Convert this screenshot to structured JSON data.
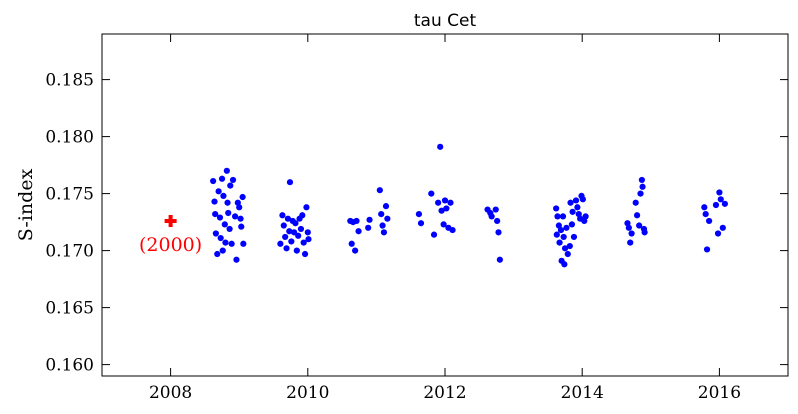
{
  "chart_data": {
    "type": "scatter",
    "title": "tau Cet",
    "xlabel": "",
    "ylabel": "S-index",
    "xlim": [
      2007.0,
      2017.0
    ],
    "ylim": [
      0.159,
      0.189
    ],
    "xticks": [
      2008,
      2010,
      2012,
      2014,
      2016
    ],
    "xtick_labels": [
      "2008",
      "2010",
      "2012",
      "2014",
      "2016"
    ],
    "yticks": [
      0.16,
      0.165,
      0.17,
      0.175,
      0.18,
      0.185
    ],
    "ytick_labels": [
      "0.160",
      "0.165",
      "0.170",
      "0.175",
      "0.180",
      "0.185"
    ],
    "grid": false,
    "colors": {
      "series": "#0000ff",
      "reference": "#ff0000"
    },
    "series": [
      {
        "marker": "circle",
        "points": [
          [
            2008.62,
            0.1761
          ],
          [
            2008.64,
            0.1743
          ],
          [
            2008.65,
            0.1732
          ],
          [
            2008.66,
            0.1715
          ],
          [
            2008.68,
            0.1697
          ],
          [
            2008.7,
            0.1752
          ],
          [
            2008.72,
            0.1729
          ],
          [
            2008.73,
            0.1711
          ],
          [
            2008.75,
            0.1763
          ],
          [
            2008.76,
            0.17
          ],
          [
            2008.77,
            0.1748
          ],
          [
            2008.79,
            0.1723
          ],
          [
            2008.8,
            0.1707
          ],
          [
            2008.82,
            0.177
          ],
          [
            2008.83,
            0.1742
          ],
          [
            2008.84,
            0.1733
          ],
          [
            2008.86,
            0.1719
          ],
          [
            2008.87,
            0.1757
          ],
          [
            2008.89,
            0.1706
          ],
          [
            2008.91,
            0.1762
          ],
          [
            2008.94,
            0.173
          ],
          [
            2008.96,
            0.1692
          ],
          [
            2008.98,
            0.1742
          ],
          [
            2009.0,
            0.1738
          ],
          [
            2009.02,
            0.1728
          ],
          [
            2009.03,
            0.1721
          ],
          [
            2009.05,
            0.1747
          ],
          [
            2009.06,
            0.1706
          ],
          [
            2009.6,
            0.1706
          ],
          [
            2009.63,
            0.1731
          ],
          [
            2009.65,
            0.1722
          ],
          [
            2009.67,
            0.1712
          ],
          [
            2009.69,
            0.1702
          ],
          [
            2009.71,
            0.1728
          ],
          [
            2009.73,
            0.1717
          ],
          [
            2009.74,
            0.176
          ],
          [
            2009.76,
            0.1708
          ],
          [
            2009.78,
            0.1726
          ],
          [
            2009.8,
            0.1716
          ],
          [
            2009.82,
            0.1724
          ],
          [
            2009.84,
            0.17
          ],
          [
            2009.86,
            0.1713
          ],
          [
            2009.88,
            0.1728
          ],
          [
            2009.9,
            0.1719
          ],
          [
            2009.92,
            0.1731
          ],
          [
            2009.94,
            0.1707
          ],
          [
            2009.96,
            0.1697
          ],
          [
            2009.98,
            0.1738
          ],
          [
            2010.0,
            0.1716
          ],
          [
            2010.01,
            0.171
          ],
          [
            2010.62,
            0.1726
          ],
          [
            2010.64,
            0.1706
          ],
          [
            2010.66,
            0.1725
          ],
          [
            2010.69,
            0.17
          ],
          [
            2010.71,
            0.1726
          ],
          [
            2010.74,
            0.1717
          ],
          [
            2010.88,
            0.172
          ],
          [
            2010.9,
            0.1727
          ],
          [
            2011.05,
            0.1753
          ],
          [
            2011.07,
            0.1732
          ],
          [
            2011.09,
            0.1722
          ],
          [
            2011.11,
            0.1716
          ],
          [
            2011.14,
            0.1739
          ],
          [
            2011.16,
            0.1728
          ],
          [
            2011.62,
            0.1732
          ],
          [
            2011.65,
            0.1724
          ],
          [
            2011.8,
            0.175
          ],
          [
            2011.84,
            0.1714
          ],
          [
            2011.9,
            0.1742
          ],
          [
            2011.93,
            0.1791
          ],
          [
            2011.95,
            0.1735
          ],
          [
            2011.98,
            0.1723
          ],
          [
            2012.0,
            0.1744
          ],
          [
            2012.02,
            0.1737
          ],
          [
            2012.05,
            0.172
          ],
          [
            2012.08,
            0.1742
          ],
          [
            2012.11,
            0.1718
          ],
          [
            2012.62,
            0.1736
          ],
          [
            2012.66,
            0.1733
          ],
          [
            2012.68,
            0.173
          ],
          [
            2012.74,
            0.1736
          ],
          [
            2012.76,
            0.1726
          ],
          [
            2012.78,
            0.1716
          ],
          [
            2012.8,
            0.1692
          ],
          [
            2013.62,
            0.1737
          ],
          [
            2013.63,
            0.1714
          ],
          [
            2013.64,
            0.173
          ],
          [
            2013.66,
            0.1722
          ],
          [
            2013.67,
            0.1707
          ],
          [
            2013.69,
            0.1718
          ],
          [
            2013.7,
            0.1691
          ],
          [
            2013.72,
            0.173
          ],
          [
            2013.73,
            0.1712
          ],
          [
            2013.74,
            0.1688
          ],
          [
            2013.75,
            0.1702
          ],
          [
            2013.77,
            0.172
          ],
          [
            2013.79,
            0.1697
          ],
          [
            2013.82,
            0.1704
          ],
          [
            2013.83,
            0.1742
          ],
          [
            2013.85,
            0.1723
          ],
          [
            2013.86,
            0.1734
          ],
          [
            2013.88,
            0.1712
          ],
          [
            2013.91,
            0.1744
          ],
          [
            2013.93,
            0.1738
          ],
          [
            2013.95,
            0.1732
          ],
          [
            2013.97,
            0.1728
          ],
          [
            2013.99,
            0.1748
          ],
          [
            2014.01,
            0.1745
          ],
          [
            2014.03,
            0.1726
          ],
          [
            2014.05,
            0.173
          ],
          [
            2014.66,
            0.1724
          ],
          [
            2014.68,
            0.172
          ],
          [
            2014.7,
            0.1707
          ],
          [
            2014.72,
            0.1715
          ],
          [
            2014.78,
            0.1742
          ],
          [
            2014.8,
            0.1731
          ],
          [
            2014.83,
            0.1722
          ],
          [
            2014.85,
            0.175
          ],
          [
            2014.87,
            0.1762
          ],
          [
            2014.88,
            0.1756
          ],
          [
            2014.9,
            0.1719
          ],
          [
            2014.91,
            0.1716
          ],
          [
            2015.78,
            0.1738
          ],
          [
            2015.8,
            0.1732
          ],
          [
            2015.82,
            0.1701
          ],
          [
            2015.85,
            0.1726
          ],
          [
            2015.95,
            0.174
          ],
          [
            2015.98,
            0.1715
          ],
          [
            2016.0,
            0.1751
          ],
          [
            2016.02,
            0.1745
          ],
          [
            2016.05,
            0.172
          ],
          [
            2016.08,
            0.1741
          ]
        ]
      },
      {
        "marker": "plus",
        "points": [
          [
            2008.0,
            0.1726
          ]
        ]
      }
    ],
    "annotations": [
      {
        "text": "(2000)",
        "x": 2008.0,
        "y": 0.1706
      }
    ]
  }
}
